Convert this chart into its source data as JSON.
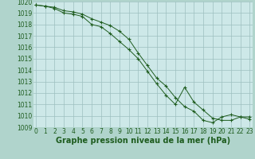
{
  "line1": [
    1019.7,
    1019.6,
    1019.5,
    1019.2,
    1019.1,
    1018.9,
    1018.5,
    1018.2,
    1017.9,
    1017.4,
    1016.7,
    1015.5,
    1014.4,
    1013.3,
    1012.6,
    1011.6,
    1010.8,
    1010.4,
    1009.6,
    1009.4,
    1009.9,
    1010.1,
    1009.9,
    1009.9
  ],
  "line2": [
    1019.7,
    1019.6,
    1019.4,
    1019.0,
    1018.9,
    1018.7,
    1018.0,
    1017.8,
    1017.2,
    1016.5,
    1015.8,
    1015.0,
    1013.9,
    1012.8,
    1011.8,
    1011.0,
    1012.5,
    1011.2,
    1010.5,
    1009.8,
    1009.6,
    1009.6,
    1009.9,
    1009.7
  ],
  "x": [
    0,
    1,
    2,
    3,
    4,
    5,
    6,
    7,
    8,
    9,
    10,
    11,
    12,
    13,
    14,
    15,
    16,
    17,
    18,
    19,
    20,
    21,
    22,
    23
  ],
  "ylim": [
    1009,
    1020
  ],
  "yticks": [
    1009,
    1010,
    1011,
    1012,
    1013,
    1014,
    1015,
    1016,
    1017,
    1018,
    1019,
    1020
  ],
  "xticks": [
    0,
    1,
    2,
    3,
    4,
    5,
    6,
    7,
    8,
    9,
    10,
    11,
    12,
    13,
    14,
    15,
    16,
    17,
    18,
    19,
    20,
    21,
    22,
    23
  ],
  "xlabel": "Graphe pression niveau de la mer (hPa)",
  "line_color": "#1e5c1e",
  "marker": "+",
  "bg_plot": "#cde8e8",
  "bg_fig": "#b0d4cc",
  "grid_color": "#9dbfbf",
  "tick_color": "#1e5c1e",
  "tick_fontsize": 5.5,
  "xlabel_fontsize": 7.0
}
